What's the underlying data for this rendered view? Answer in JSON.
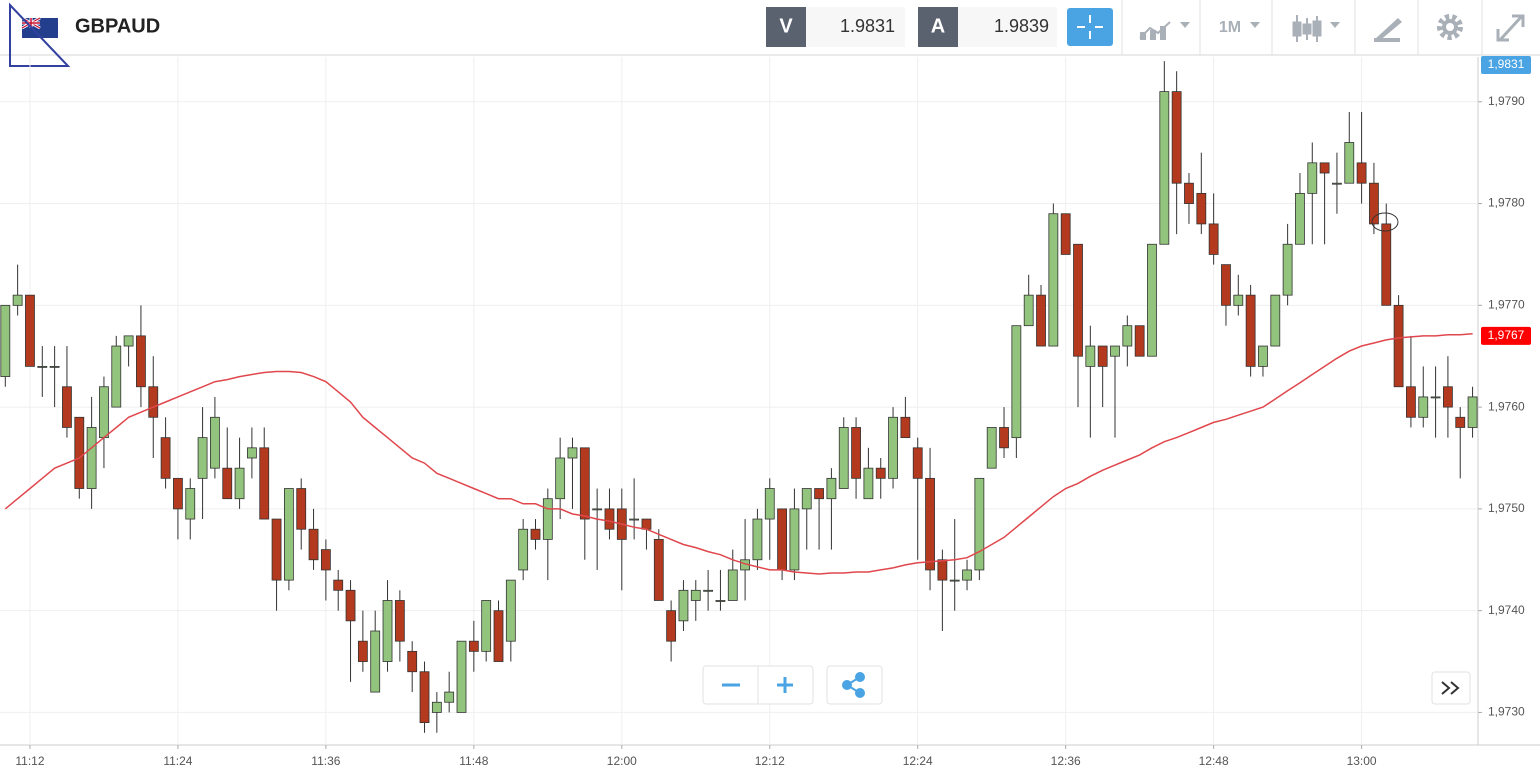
{
  "toolbar": {
    "symbol": "GBPAUD",
    "bid_letter": "V",
    "bid": "1.9831",
    "ask_letter": "A",
    "ask": "1.9839",
    "timeframe": "1M"
  },
  "chart_data": {
    "type": "candlestick",
    "categories": [
      null,
      null,
      "11:12",
      null,
      null,
      null,
      null,
      null,
      null,
      null,
      null,
      null,
      null,
      null,
      "11:24",
      null,
      null,
      null,
      null,
      null,
      null,
      null,
      null,
      null,
      null,
      null,
      "11:36",
      null,
      null,
      null,
      null,
      null,
      null,
      null,
      null,
      null,
      null,
      null,
      "11:48",
      null,
      null,
      null,
      null,
      null,
      null,
      null,
      null,
      null,
      null,
      null,
      "12:00",
      null,
      null,
      null,
      null,
      null,
      null,
      null,
      null,
      null,
      null,
      null,
      "12:12",
      null,
      null,
      null,
      null,
      null,
      null,
      null,
      null,
      null,
      null,
      null,
      "12:24",
      null,
      null,
      null,
      null,
      null,
      null,
      null,
      null,
      null,
      null,
      null,
      "12:36",
      null,
      null,
      null,
      null,
      null,
      null,
      null,
      null,
      null,
      null,
      null,
      "12:48",
      null,
      null,
      null,
      null,
      null,
      null,
      null,
      null,
      null,
      null,
      null,
      "13:00",
      null,
      null,
      null,
      null,
      null,
      null,
      null,
      null,
      null
    ],
    "open": [
      1.9763,
      1.977,
      1.9771,
      1.9764,
      1.9764,
      1.9762,
      1.9759,
      1.9752,
      1.9757,
      1.976,
      1.9766,
      1.9767,
      1.9762,
      1.9757,
      1.9753,
      1.9749,
      1.9753,
      1.9754,
      1.9754,
      1.9751,
      1.9755,
      1.9756,
      1.9749,
      1.9743,
      1.9752,
      1.9748,
      1.9746,
      1.9743,
      1.9742,
      1.9737,
      1.9732,
      1.9735,
      1.9741,
      1.9736,
      1.9734,
      1.973,
      1.9731,
      1.973,
      1.9737,
      1.9736,
      1.974,
      1.9737,
      1.9744,
      1.9748,
      1.9747,
      1.9751,
      1.9755,
      1.9756,
      1.975,
      1.975,
      1.975,
      1.9749,
      1.9749,
      1.9747,
      1.974,
      1.9739,
      1.9741,
      1.9742,
      1.9741,
      1.9741,
      1.9744,
      1.9745,
      1.9749,
      1.975,
      1.9744,
      1.975,
      1.9752,
      1.9751,
      1.9752,
      1.9758,
      1.9751,
      1.9754,
      1.9753,
      1.9759,
      1.9756,
      1.9753,
      1.9745,
      1.9743,
      1.9743,
      1.9744,
      1.9754,
      1.9758,
      1.9757,
      1.9768,
      1.9771,
      1.9766,
      1.9779,
      1.9776,
      1.9764,
      1.9766,
      1.9765,
      1.9766,
      1.9768,
      1.9765,
      1.9776,
      1.9791,
      1.9782,
      1.9781,
      1.9778,
      1.9774,
      1.977,
      1.9771,
      1.9764,
      1.9766,
      1.9771,
      1.9776,
      1.9781,
      1.9784,
      1.9782,
      1.9782,
      1.9784,
      1.9782,
      1.9778,
      1.977,
      1.9762,
      1.9759,
      1.9761,
      1.9762,
      1.9759,
      1.9758
    ],
    "high": [
      1.977,
      1.9774,
      1.9771,
      1.9766,
      1.9766,
      1.9766,
      1.9759,
      1.9761,
      1.9763,
      1.9767,
      1.9767,
      1.977,
      1.9765,
      1.9759,
      1.9753,
      1.9753,
      1.976,
      1.9761,
      1.9758,
      1.9757,
      1.9758,
      1.9758,
      1.9749,
      1.9752,
      1.9753,
      1.975,
      1.9747,
      1.9744,
      1.9743,
      1.974,
      1.974,
      1.9743,
      1.9742,
      1.9737,
      1.9735,
      1.9732,
      1.9734,
      1.9737,
      1.9739,
      1.9741,
      1.9741,
      1.9743,
      1.9749,
      1.9749,
      1.9752,
      1.9757,
      1.9757,
      1.9756,
      1.9752,
      1.9752,
      1.9752,
      1.9753,
      1.9749,
      1.9748,
      1.9741,
      1.9743,
      1.9743,
      1.9744,
      1.9744,
      1.9746,
      1.9749,
      1.975,
      1.9753,
      1.975,
      1.9752,
      1.9752,
      1.9752,
      1.9754,
      1.9759,
      1.9759,
      1.9756,
      1.9755,
      1.976,
      1.9761,
      1.9757,
      1.9756,
      1.9746,
      1.9749,
      1.9745,
      1.9753,
      1.9758,
      1.976,
      1.9768,
      1.9773,
      1.9772,
      1.978,
      1.9779,
      1.9776,
      1.9768,
      1.9766,
      1.9766,
      1.9769,
      1.9768,
      1.9776,
      1.9794,
      1.9793,
      1.9783,
      1.9785,
      1.9781,
      1.9774,
      1.9773,
      1.9772,
      1.9766,
      1.9771,
      1.9778,
      1.9783,
      1.9786,
      1.9784,
      1.9785,
      1.9789,
      1.9789,
      1.9784,
      1.978,
      1.9771,
      1.9767,
      1.9764,
      1.9764,
      1.9765,
      1.976,
      1.9762
    ],
    "low": [
      1.9762,
      1.9769,
      1.9764,
      1.9761,
      1.976,
      1.9757,
      1.9751,
      1.975,
      1.9754,
      1.976,
      1.9764,
      1.976,
      1.9755,
      1.9752,
      1.9747,
      1.9747,
      1.9749,
      1.9753,
      1.9751,
      1.975,
      1.9753,
      1.9749,
      1.974,
      1.9742,
      1.9746,
      1.9744,
      1.9741,
      1.974,
      1.9733,
      1.9734,
      1.9732,
      1.9734,
      1.9735,
      1.9732,
      1.9728,
      1.9728,
      1.973,
      1.973,
      1.9734,
      1.9735,
      1.9735,
      1.9735,
      1.9743,
      1.9746,
      1.9743,
      1.9749,
      1.975,
      1.9745,
      1.9744,
      1.9747,
      1.9742,
      1.9747,
      1.9746,
      1.9741,
      1.9735,
      1.9738,
      1.9739,
      1.974,
      1.974,
      1.9741,
      1.9741,
      1.9744,
      1.9745,
      1.9743,
      1.9743,
      1.9746,
      1.9746,
      1.9746,
      1.9752,
      1.9751,
      1.9751,
      1.9751,
      1.9752,
      1.9757,
      1.9745,
      1.9742,
      1.9738,
      1.974,
      1.9742,
      1.9743,
      1.9754,
      1.9755,
      1.9755,
      1.9768,
      1.9766,
      1.9766,
      1.9775,
      1.976,
      1.9757,
      1.976,
      1.9757,
      1.9764,
      1.9765,
      1.9765,
      1.9776,
      1.9777,
      1.9778,
      1.9777,
      1.9774,
      1.9768,
      1.9769,
      1.9763,
      1.9763,
      1.9766,
      1.977,
      1.9776,
      1.9776,
      1.9776,
      1.9779,
      1.9782,
      1.978,
      1.9777,
      1.977,
      1.9762,
      1.9758,
      1.9758,
      1.9757,
      1.9757,
      1.9753,
      1.9757
    ],
    "close": [
      1.977,
      1.9771,
      1.9764,
      1.9764,
      1.9764,
      1.9758,
      1.9752,
      1.9758,
      1.9762,
      1.9766,
      1.9767,
      1.9762,
      1.9759,
      1.9753,
      1.975,
      1.9752,
      1.9757,
      1.9759,
      1.9751,
      1.9754,
      1.9756,
      1.9749,
      1.9743,
      1.9752,
      1.9748,
      1.9745,
      1.9744,
      1.9742,
      1.9739,
      1.9735,
      1.9738,
      1.9741,
      1.9737,
      1.9734,
      1.9729,
      1.9731,
      1.9732,
      1.9737,
      1.9736,
      1.9741,
      1.9735,
      1.9743,
      1.9748,
      1.9747,
      1.9751,
      1.9755,
      1.9756,
      1.9749,
      1.975,
      1.9748,
      1.9747,
      1.9749,
      1.9748,
      1.9741,
      1.9737,
      1.9742,
      1.9742,
      1.9742,
      1.9741,
      1.9744,
      1.9745,
      1.9749,
      1.9752,
      1.9744,
      1.975,
      1.9752,
      1.9751,
      1.9753,
      1.9758,
      1.9753,
      1.9754,
      1.9753,
      1.9759,
      1.9757,
      1.9753,
      1.9744,
      1.9743,
      1.9743,
      1.9744,
      1.9753,
      1.9758,
      1.9756,
      1.9768,
      1.9771,
      1.9766,
      1.9779,
      1.9775,
      1.9765,
      1.9766,
      1.9764,
      1.9766,
      1.9768,
      1.9765,
      1.9776,
      1.9791,
      1.9782,
      1.978,
      1.9778,
      1.9775,
      1.977,
      1.9771,
      1.9764,
      1.9766,
      1.9771,
      1.9776,
      1.9781,
      1.9784,
      1.9783,
      1.9782,
      1.9786,
      1.9782,
      1.9778,
      1.977,
      1.9762,
      1.9759,
      1.9761,
      1.9761,
      1.976,
      1.9758,
      1.9761
    ],
    "ma": [
      1.975,
      1.9751,
      1.9752,
      1.9753,
      1.9754,
      1.97545,
      1.9755,
      1.9756,
      1.9757,
      1.9758,
      1.9759,
      1.97595,
      1.976,
      1.97605,
      1.9761,
      1.97615,
      1.9762,
      1.97625,
      1.97627,
      1.9763,
      1.97632,
      1.97634,
      1.97635,
      1.97635,
      1.97634,
      1.9763,
      1.97625,
      1.97615,
      1.97605,
      1.9759,
      1.9758,
      1.9757,
      1.9756,
      1.9755,
      1.97545,
      1.97535,
      1.9753,
      1.97525,
      1.9752,
      1.97515,
      1.9751,
      1.9751,
      1.97505,
      1.97505,
      1.975,
      1.975,
      1.97495,
      1.97493,
      1.9749,
      1.97488,
      1.97485,
      1.97482,
      1.9748,
      1.97475,
      1.9747,
      1.97465,
      1.97462,
      1.97458,
      1.97455,
      1.9745,
      1.97446,
      1.97443,
      1.9744,
      1.9744,
      1.97438,
      1.97437,
      1.97436,
      1.97437,
      1.97437,
      1.97438,
      1.97438,
      1.9744,
      1.97442,
      1.97445,
      1.97447,
      1.97448,
      1.97449,
      1.9745,
      1.97452,
      1.97458,
      1.97465,
      1.97472,
      1.97482,
      1.97492,
      1.97502,
      1.97512,
      1.9752,
      1.97525,
      1.97532,
      1.97538,
      1.97543,
      1.97548,
      1.97553,
      1.9756,
      1.97566,
      1.9757,
      1.97575,
      1.9758,
      1.97585,
      1.97588,
      1.97592,
      1.97596,
      1.976,
      1.97608,
      1.97616,
      1.97624,
      1.97632,
      1.9764,
      1.97648,
      1.97655,
      1.9766,
      1.97663,
      1.97666,
      1.97668,
      1.97669,
      1.9767,
      1.9767,
      1.97671,
      1.97671,
      1.97672
    ],
    "up_color": "#93c47d",
    "down_color": "#b33a1e",
    "ma_color": "#e0474c",
    "ylim": [
      1.97268,
      1.97944
    ],
    "yticks": [
      {
        "value": 1.973,
        "label": "1,9730"
      },
      {
        "value": 1.974,
        "label": "1,9740"
      },
      {
        "value": 1.975,
        "label": "1,9750"
      },
      {
        "value": 1.976,
        "label": "1,9760"
      },
      {
        "value": 1.977,
        "label": "1,9770"
      },
      {
        "value": 1.978,
        "label": "1,9780"
      },
      {
        "value": 1.979,
        "label": "1,9790"
      }
    ],
    "grid": true,
    "bid_tag": "1,9831",
    "last_price": {
      "value": 1.9767,
      "label": "1,9767"
    }
  }
}
